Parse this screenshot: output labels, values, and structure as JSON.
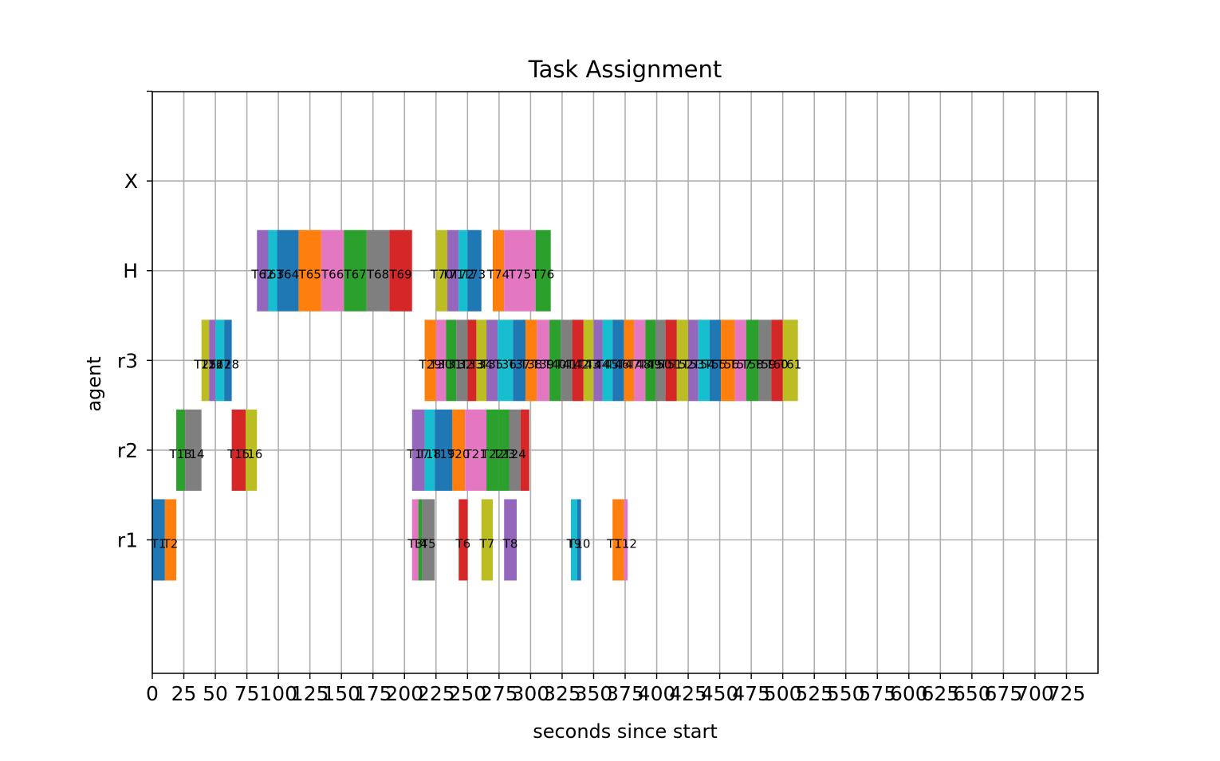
{
  "chart_data": {
    "type": "gantt",
    "title": "Task Assignment",
    "xlabel": "seconds since start",
    "ylabel": "agent",
    "xlim": [
      0,
      750
    ],
    "x_ticks": [
      0,
      25,
      50,
      75,
      100,
      125,
      150,
      175,
      200,
      225,
      250,
      275,
      300,
      325,
      350,
      375,
      400,
      425,
      450,
      475,
      500,
      525,
      550,
      575,
      600,
      625,
      650,
      675,
      700,
      725
    ],
    "y_categories": [
      "r1",
      "r2",
      "r3",
      "H",
      "X"
    ],
    "grid": true,
    "palette": [
      "#1f77b4",
      "#ff7f0e",
      "#2ca02c",
      "#d62728",
      "#9467bd",
      "#8c564b",
      "#e377c2",
      "#7f7f7f",
      "#bcbd22",
      "#17becf"
    ],
    "tasks": [
      {
        "agent": "r1",
        "label": "T1",
        "start": 0,
        "end": 10,
        "color": "#1f77b4"
      },
      {
        "agent": "r1",
        "label": "T2",
        "start": 10,
        "end": 19,
        "color": "#ff7f0e"
      },
      {
        "agent": "r1",
        "label": "T3",
        "start": 206,
        "end": 211,
        "color": "#e377c2"
      },
      {
        "agent": "r1",
        "label": "T4",
        "start": 211,
        "end": 214,
        "color": "#2ca02c"
      },
      {
        "agent": "r1",
        "label": "T5",
        "start": 214,
        "end": 224,
        "color": "#7f7f7f"
      },
      {
        "agent": "r1",
        "label": "T6",
        "start": 243,
        "end": 250,
        "color": "#d62728"
      },
      {
        "agent": "r1",
        "label": "T7",
        "start": 261,
        "end": 270,
        "color": "#bcbd22"
      },
      {
        "agent": "r1",
        "label": "T8",
        "start": 279,
        "end": 289,
        "color": "#9467bd"
      },
      {
        "agent": "r1",
        "label": "T9",
        "start": 332,
        "end": 337,
        "color": "#17becf"
      },
      {
        "agent": "r1",
        "label": "T10",
        "start": 337,
        "end": 340,
        "color": "#1f77b4"
      },
      {
        "agent": "r1",
        "label": "T11",
        "start": 365,
        "end": 374,
        "color": "#ff7f0e"
      },
      {
        "agent": "r1",
        "label": "T12",
        "start": 374,
        "end": 377,
        "color": "#e377c2"
      },
      {
        "agent": "r2",
        "label": "T13",
        "start": 19,
        "end": 26,
        "color": "#2ca02c"
      },
      {
        "agent": "r2",
        "label": "T14",
        "start": 26,
        "end": 39,
        "color": "#7f7f7f"
      },
      {
        "agent": "r2",
        "label": "T15",
        "start": 63,
        "end": 74,
        "color": "#d62728"
      },
      {
        "agent": "r2",
        "label": "T16",
        "start": 74,
        "end": 83,
        "color": "#bcbd22"
      },
      {
        "agent": "r2",
        "label": "T17",
        "start": 206,
        "end": 216,
        "color": "#9467bd"
      },
      {
        "agent": "r2",
        "label": "T18",
        "start": 216,
        "end": 224,
        "color": "#17becf"
      },
      {
        "agent": "r2",
        "label": "T19",
        "start": 224,
        "end": 238,
        "color": "#1f77b4"
      },
      {
        "agent": "r2",
        "label": "T20",
        "start": 238,
        "end": 248,
        "color": "#ff7f0e"
      },
      {
        "agent": "r2",
        "label": "T21",
        "start": 248,
        "end": 265,
        "color": "#e377c2"
      },
      {
        "agent": "r2",
        "label": "T22",
        "start": 265,
        "end": 275,
        "color": "#2ca02c"
      },
      {
        "agent": "r2",
        "label": "T23",
        "start": 275,
        "end": 283,
        "color": "#2ca02c"
      },
      {
        "agent": "r2",
        "label": "T24",
        "start": 283,
        "end": 292,
        "color": "#7f7f7f"
      },
      {
        "agent": "r2",
        "label": "",
        "start": 292,
        "end": 299,
        "color": "#d62728"
      },
      {
        "agent": "r3",
        "label": "T25",
        "start": 39,
        "end": 45,
        "color": "#bcbd22"
      },
      {
        "agent": "r3",
        "label": "T26",
        "start": 45,
        "end": 50,
        "color": "#9467bd"
      },
      {
        "agent": "r3",
        "label": "T27",
        "start": 50,
        "end": 57,
        "color": "#17becf"
      },
      {
        "agent": "r3",
        "label": "T28",
        "start": 57,
        "end": 63,
        "color": "#1f77b4"
      },
      {
        "agent": "r3",
        "label": "T29",
        "start": 216,
        "end": 225,
        "color": "#ff7f0e"
      },
      {
        "agent": "r3",
        "label": "T30",
        "start": 225,
        "end": 233,
        "color": "#e377c2"
      },
      {
        "agent": "r3",
        "label": "T31",
        "start": 233,
        "end": 241,
        "color": "#2ca02c"
      },
      {
        "agent": "r3",
        "label": "T32",
        "start": 241,
        "end": 250,
        "color": "#7f7f7f"
      },
      {
        "agent": "r3",
        "label": "T33",
        "start": 250,
        "end": 257,
        "color": "#d62728"
      },
      {
        "agent": "r3",
        "label": "T34",
        "start": 257,
        "end": 265,
        "color": "#bcbd22"
      },
      {
        "agent": "r3",
        "label": "T35",
        "start": 265,
        "end": 274,
        "color": "#9467bd"
      },
      {
        "agent": "r3",
        "label": "T36",
        "start": 274,
        "end": 286,
        "color": "#17becf"
      },
      {
        "agent": "r3",
        "label": "T37",
        "start": 286,
        "end": 296,
        "color": "#1f77b4"
      },
      {
        "agent": "r3",
        "label": "T38",
        "start": 296,
        "end": 305,
        "color": "#ff7f0e"
      },
      {
        "agent": "r3",
        "label": "T39",
        "start": 305,
        "end": 315,
        "color": "#e377c2"
      },
      {
        "agent": "r3",
        "label": "T40",
        "start": 315,
        "end": 324,
        "color": "#2ca02c"
      },
      {
        "agent": "r3",
        "label": "T41",
        "start": 324,
        "end": 333,
        "color": "#7f7f7f"
      },
      {
        "agent": "r3",
        "label": "T42",
        "start": 333,
        "end": 342,
        "color": "#d62728"
      },
      {
        "agent": "r3",
        "label": "T43",
        "start": 342,
        "end": 350,
        "color": "#bcbd22"
      },
      {
        "agent": "r3",
        "label": "T44",
        "start": 350,
        "end": 357,
        "color": "#9467bd"
      },
      {
        "agent": "r3",
        "label": "T45",
        "start": 357,
        "end": 365,
        "color": "#17becf"
      },
      {
        "agent": "r3",
        "label": "T46",
        "start": 365,
        "end": 374,
        "color": "#1f77b4"
      },
      {
        "agent": "r3",
        "label": "T47",
        "start": 374,
        "end": 382,
        "color": "#ff7f0e"
      },
      {
        "agent": "r3",
        "label": "T48",
        "start": 382,
        "end": 391,
        "color": "#e377c2"
      },
      {
        "agent": "r3",
        "label": "T49",
        "start": 391,
        "end": 399,
        "color": "#2ca02c"
      },
      {
        "agent": "r3",
        "label": "T50",
        "start": 399,
        "end": 407,
        "color": "#7f7f7f"
      },
      {
        "agent": "r3",
        "label": "T51",
        "start": 407,
        "end": 416,
        "color": "#d62728"
      },
      {
        "agent": "r3",
        "label": "T52",
        "start": 416,
        "end": 425,
        "color": "#bcbd22"
      },
      {
        "agent": "r3",
        "label": "T53",
        "start": 425,
        "end": 433,
        "color": "#9467bd"
      },
      {
        "agent": "r3",
        "label": "T54",
        "start": 433,
        "end": 442,
        "color": "#17becf"
      },
      {
        "agent": "r3",
        "label": "T55",
        "start": 442,
        "end": 451,
        "color": "#1f77b4"
      },
      {
        "agent": "r3",
        "label": "T56",
        "start": 451,
        "end": 462,
        "color": "#ff7f0e"
      },
      {
        "agent": "r3",
        "label": "T57",
        "start": 462,
        "end": 471,
        "color": "#e377c2"
      },
      {
        "agent": "r3",
        "label": "T58",
        "start": 471,
        "end": 481,
        "color": "#2ca02c"
      },
      {
        "agent": "r3",
        "label": "T59",
        "start": 481,
        "end": 491,
        "color": "#7f7f7f"
      },
      {
        "agent": "r3",
        "label": "T60",
        "start": 491,
        "end": 500,
        "color": "#d62728"
      },
      {
        "agent": "r3",
        "label": "T61",
        "start": 500,
        "end": 512,
        "color": "#bcbd22"
      },
      {
        "agent": "H",
        "label": "T62",
        "start": 83,
        "end": 92,
        "color": "#9467bd"
      },
      {
        "agent": "H",
        "label": "T63",
        "start": 92,
        "end": 99,
        "color": "#17becf"
      },
      {
        "agent": "H",
        "label": "T64",
        "start": 99,
        "end": 116,
        "color": "#1f77b4"
      },
      {
        "agent": "H",
        "label": "T65",
        "start": 116,
        "end": 134,
        "color": "#ff7f0e"
      },
      {
        "agent": "H",
        "label": "T66",
        "start": 134,
        "end": 152,
        "color": "#e377c2"
      },
      {
        "agent": "H",
        "label": "T67",
        "start": 152,
        "end": 170,
        "color": "#2ca02c"
      },
      {
        "agent": "H",
        "label": "T68",
        "start": 170,
        "end": 188,
        "color": "#7f7f7f"
      },
      {
        "agent": "H",
        "label": "T69",
        "start": 188,
        "end": 206,
        "color": "#d62728"
      },
      {
        "agent": "H",
        "label": "T70",
        "start": 225,
        "end": 234,
        "color": "#bcbd22"
      },
      {
        "agent": "H",
        "label": "T71",
        "start": 234,
        "end": 243,
        "color": "#9467bd"
      },
      {
        "agent": "H",
        "label": "T72",
        "start": 243,
        "end": 250,
        "color": "#17becf"
      },
      {
        "agent": "H",
        "label": "T73",
        "start": 250,
        "end": 261,
        "color": "#1f77b4"
      },
      {
        "agent": "H",
        "label": "T74",
        "start": 270,
        "end": 279,
        "color": "#ff7f0e"
      },
      {
        "agent": "H",
        "label": "T75",
        "start": 279,
        "end": 304,
        "color": "#e377c2"
      },
      {
        "agent": "H",
        "label": "T76",
        "start": 304,
        "end": 316,
        "color": "#2ca02c"
      }
    ]
  }
}
